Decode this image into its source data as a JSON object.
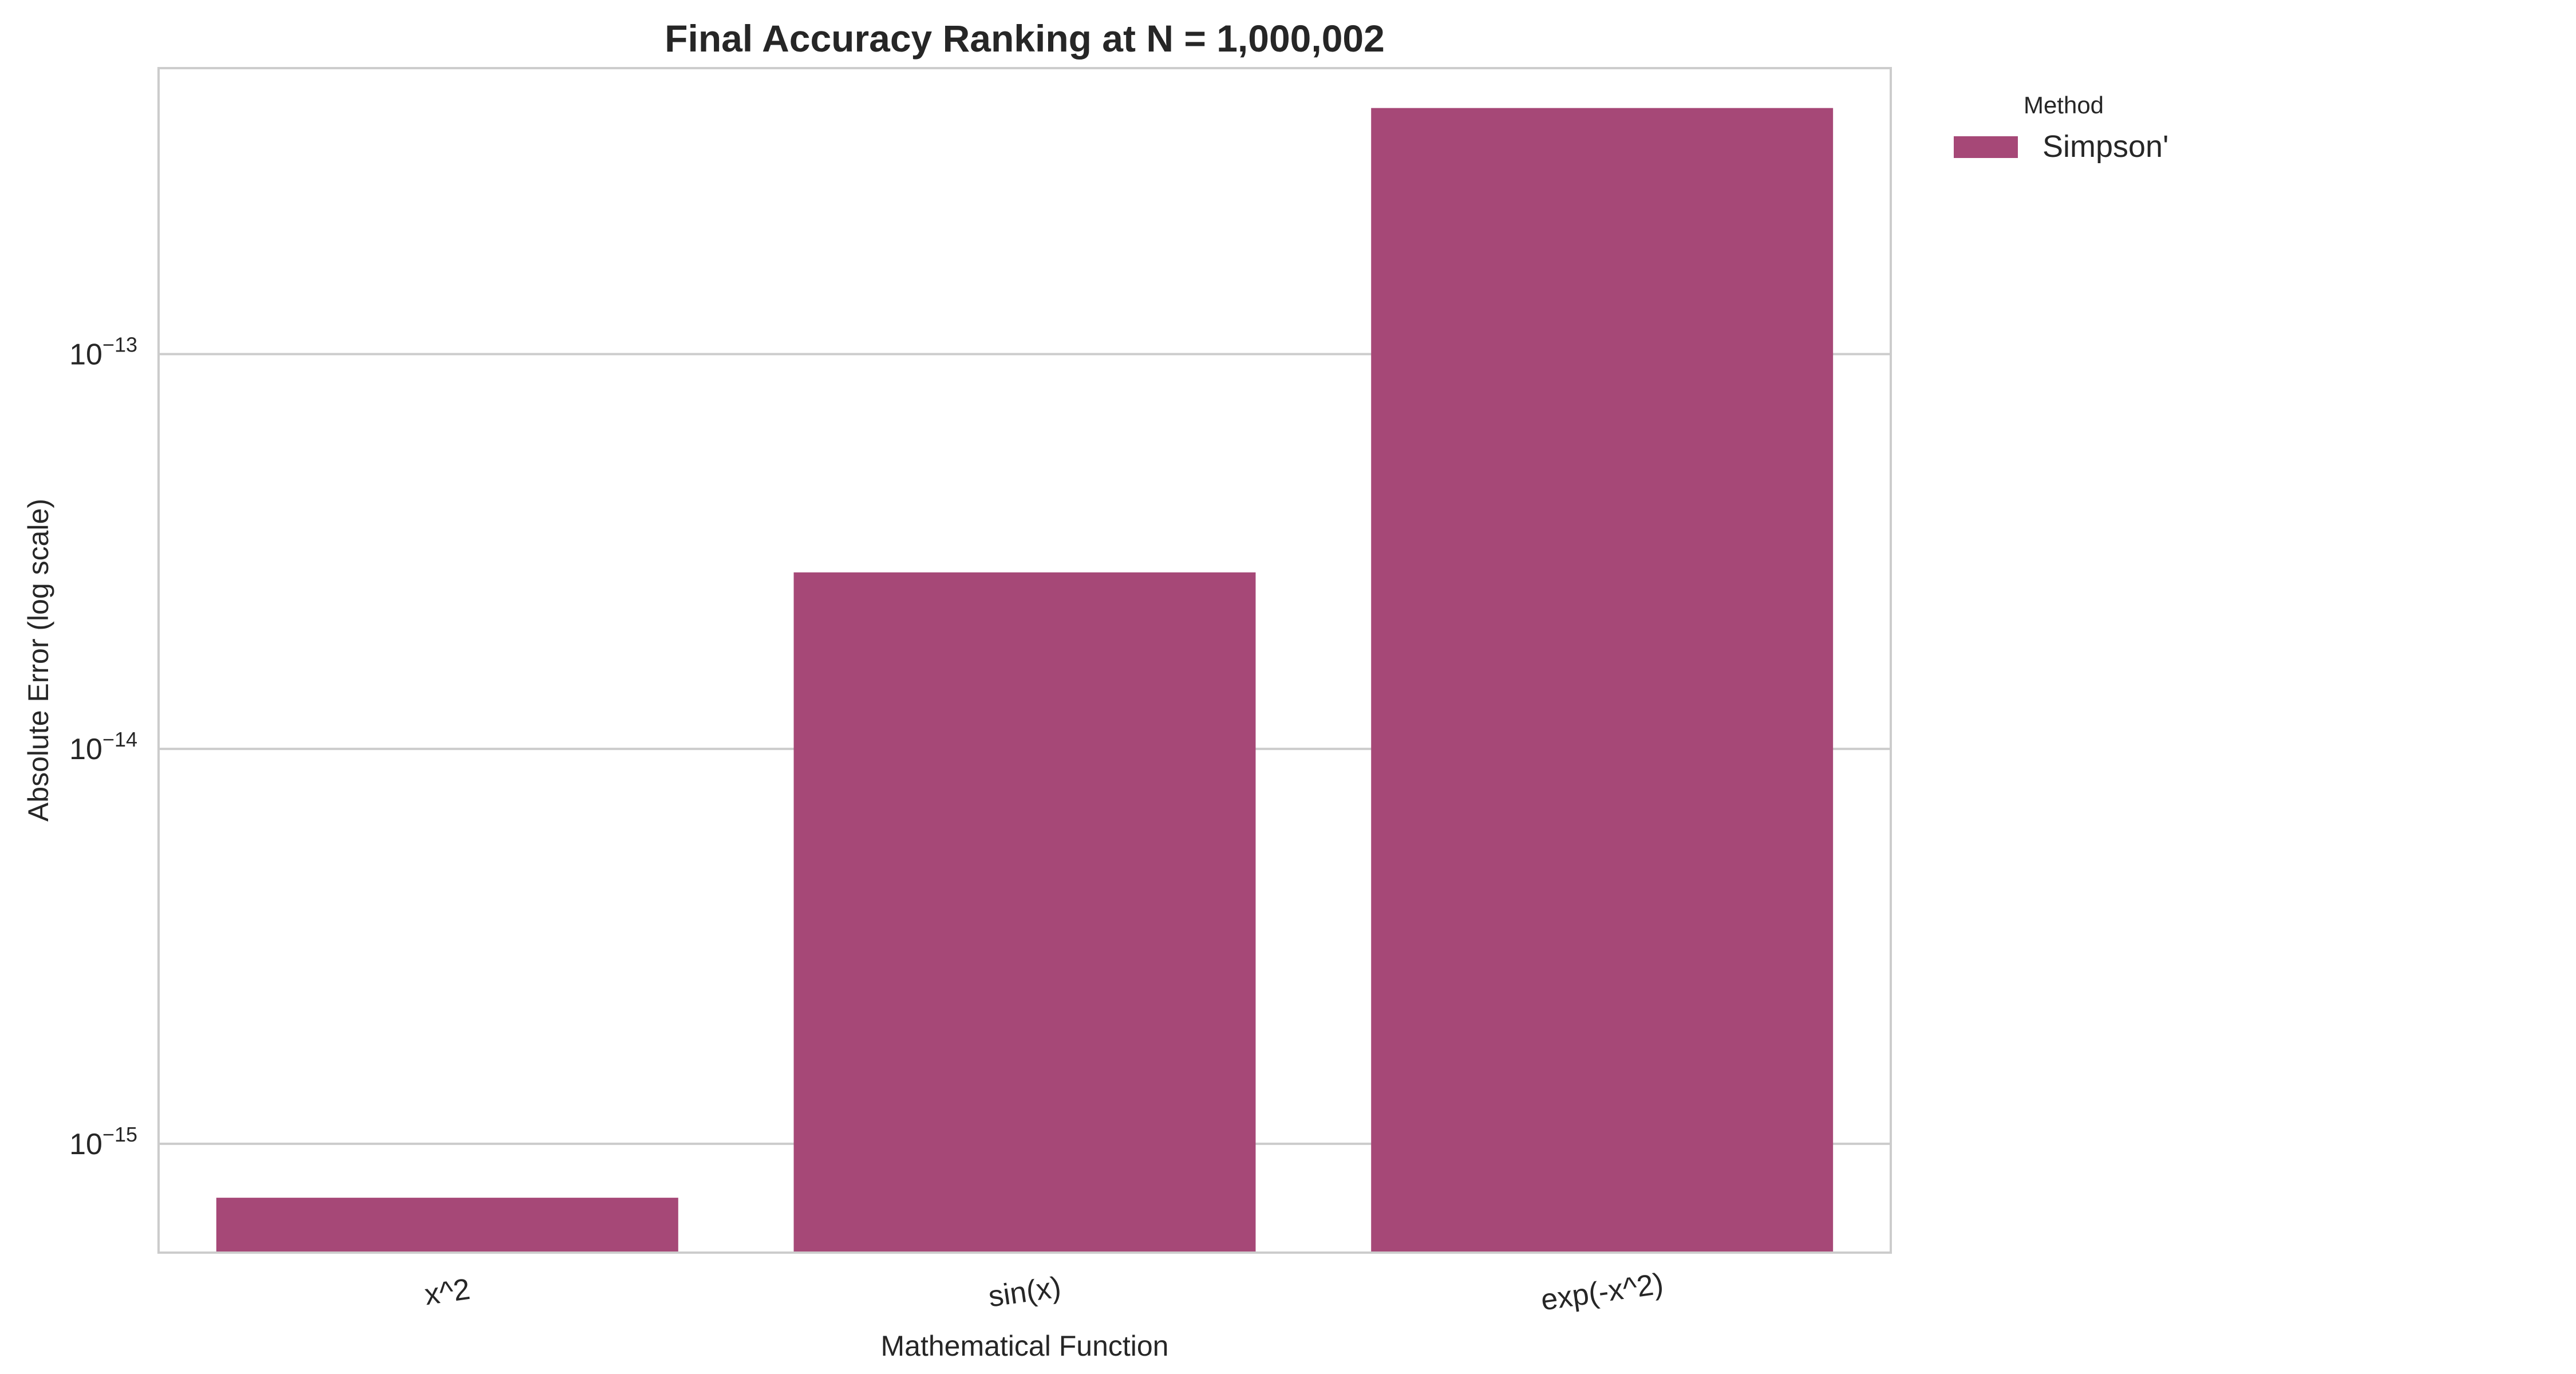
{
  "chart_data": {
    "type": "bar",
    "title": "Final Accuracy Ranking at N = 1,000,002",
    "xlabel": "Mathematical Function",
    "ylabel": "Absolute Error (log scale)",
    "yscale": "log",
    "ylim": [
      5.3e-16,
      5.3e-13
    ],
    "categories": [
      "x^2",
      "sin(x)",
      "exp(-x^2)"
    ],
    "series": [
      {
        "name": "Simpson'",
        "color": "#a64877",
        "values": [
          7.3e-16,
          2.8e-14,
          4.2e-13
        ]
      }
    ],
    "y_ticks": [
      {
        "value": 1e-15,
        "base": "10",
        "exponent": "−15"
      },
      {
        "value": 1e-14,
        "base": "10",
        "exponent": "−14"
      },
      {
        "value": 1e-13,
        "base": "10",
        "exponent": "−13"
      }
    ],
    "grid": true,
    "legend": {
      "title": "Method",
      "placement": "outside-top-right"
    },
    "colors": {
      "bar": "#a64877",
      "grid": "#cccccc",
      "frame": "#cccccc",
      "text": "#262626"
    }
  }
}
